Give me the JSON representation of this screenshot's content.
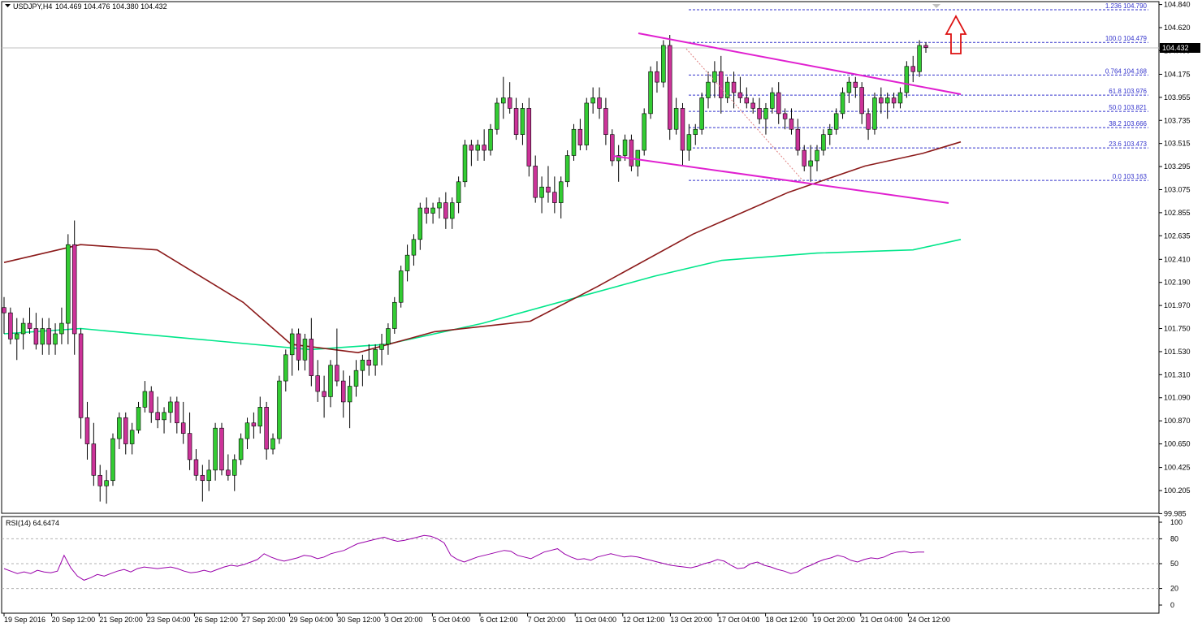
{
  "header": {
    "symbol": "USDJPY,H4",
    "ohlc": "104.469 104.476 104.380 104.432"
  },
  "price_axis": {
    "labels": [
      "104.840",
      "104.620",
      "104.400",
      "104.175",
      "103.955",
      "103.735",
      "103.515",
      "103.295",
      "103.075",
      "102.855",
      "102.635",
      "102.410",
      "102.190",
      "101.970",
      "101.750",
      "101.530",
      "101.310",
      "101.090",
      "100.870",
      "100.650",
      "100.425",
      "100.205",
      "99.985"
    ],
    "current_price": "104.432"
  },
  "rsi": {
    "label": "RSI(14) 64.6474",
    "levels": [
      "100",
      "80",
      "50",
      "20",
      "0"
    ]
  },
  "time_axis": {
    "labels": [
      "19 Sep 2016",
      "20 Sep 12:00",
      "21 Sep 20:00",
      "23 Sep 04:00",
      "26 Sep 12:00",
      "27 Sep 20:00",
      "29 Sep 04:00",
      "30 Sep 12:00",
      "3 Oct 20:00",
      "5 Oct 04:00",
      "6 Oct 12:00",
      "7 Oct 20:00",
      "11 Oct 04:00",
      "12 Oct 12:00",
      "13 Oct 20:00",
      "17 Oct 04:00",
      "18 Oct 12:00",
      "19 Oct 20:00",
      "21 Oct 04:00",
      "24 Oct 12:00"
    ]
  },
  "fibonacci": [
    {
      "ratio": "1.236",
      "price": "104.790"
    },
    {
      "ratio": "100.0",
      "price": "104.479"
    },
    {
      "ratio": "0.764",
      "price": "104.168"
    },
    {
      "ratio": "61.8",
      "price": "103.976"
    },
    {
      "ratio": "50.0",
      "price": "103.821"
    },
    {
      "ratio": "38.2",
      "price": "103.666"
    },
    {
      "ratio": "23.6",
      "price": "103.473"
    },
    {
      "ratio": "0.0",
      "price": "103.163"
    }
  ],
  "colors": {
    "bull": "#33cc33",
    "bear": "#cc3399",
    "ma_long": "#00e68a",
    "ma_short": "#8b1a1a",
    "channel": "#e020d0",
    "fib": "#3333cc",
    "arrow": "#dd1111",
    "rsi": "#9900aa"
  },
  "chart_data": {
    "type": "candlestick",
    "symbol": "USDJPY",
    "timeframe": "H4",
    "ylim": [
      99.985,
      104.84
    ],
    "candles": [
      [
        101.95,
        102.05,
        101.7,
        101.9
      ],
      [
        101.9,
        101.95,
        101.6,
        101.65
      ],
      [
        101.65,
        101.85,
        101.45,
        101.7
      ],
      [
        101.7,
        101.85,
        101.55,
        101.8
      ],
      [
        101.8,
        101.95,
        101.7,
        101.75
      ],
      [
        101.75,
        101.9,
        101.55,
        101.6
      ],
      [
        101.6,
        101.85,
        101.5,
        101.75
      ],
      [
        101.75,
        101.85,
        101.5,
        101.6
      ],
      [
        101.6,
        101.8,
        101.5,
        101.7
      ],
      [
        101.7,
        101.95,
        101.6,
        101.8
      ],
      [
        101.8,
        102.65,
        101.6,
        102.55
      ],
      [
        102.55,
        102.78,
        101.5,
        101.7
      ],
      [
        101.7,
        101.75,
        100.7,
        100.9
      ],
      [
        100.9,
        101.05,
        100.5,
        100.65
      ],
      [
        100.65,
        100.85,
        100.25,
        100.35
      ],
      [
        100.35,
        100.45,
        100.1,
        100.25
      ],
      [
        100.25,
        100.4,
        100.08,
        100.3
      ],
      [
        100.3,
        100.75,
        100.25,
        100.7
      ],
      [
        100.7,
        100.95,
        100.6,
        100.9
      ],
      [
        100.9,
        100.95,
        100.55,
        100.65
      ],
      [
        100.65,
        100.85,
        100.55,
        100.78
      ],
      [
        100.78,
        101.05,
        100.75,
        101.0
      ],
      [
        101.0,
        101.25,
        100.95,
        101.15
      ],
      [
        101.15,
        101.2,
        100.85,
        100.95
      ],
      [
        100.95,
        101.1,
        100.8,
        100.88
      ],
      [
        100.88,
        101.0,
        100.75,
        100.95
      ],
      [
        100.95,
        101.1,
        100.85,
        101.05
      ],
      [
        101.05,
        101.1,
        100.75,
        100.85
      ],
      [
        100.85,
        101.05,
        100.65,
        100.75
      ],
      [
        100.75,
        100.95,
        100.4,
        100.5
      ],
      [
        100.5,
        100.6,
        100.3,
        100.35
      ],
      [
        100.35,
        100.45,
        100.1,
        100.3
      ],
      [
        100.3,
        100.5,
        100.2,
        100.4
      ],
      [
        100.4,
        100.85,
        100.3,
        100.8
      ],
      [
        100.8,
        100.85,
        100.35,
        100.4
      ],
      [
        100.4,
        100.55,
        100.3,
        100.35
      ],
      [
        100.35,
        100.55,
        100.2,
        100.5
      ],
      [
        100.5,
        100.75,
        100.45,
        100.7
      ],
      [
        100.7,
        100.9,
        100.6,
        100.85
      ],
      [
        100.85,
        100.95,
        100.7,
        100.82
      ],
      [
        100.82,
        101.1,
        100.75,
        101.0
      ],
      [
        101.0,
        101.05,
        100.5,
        100.6
      ],
      [
        100.6,
        100.75,
        100.55,
        100.7
      ],
      [
        100.7,
        101.3,
        100.65,
        101.25
      ],
      [
        101.25,
        101.55,
        101.15,
        101.5
      ],
      [
        101.5,
        101.75,
        101.3,
        101.7
      ],
      [
        101.7,
        101.75,
        101.35,
        101.45
      ],
      [
        101.45,
        101.7,
        101.35,
        101.65
      ],
      [
        101.65,
        101.85,
        101.2,
        101.3
      ],
      [
        101.3,
        101.45,
        101.05,
        101.15
      ],
      [
        101.15,
        101.3,
        100.9,
        101.1
      ],
      [
        101.1,
        101.45,
        101.0,
        101.4
      ],
      [
        101.4,
        101.75,
        101.2,
        101.25
      ],
      [
        101.25,
        101.35,
        100.9,
        101.05
      ],
      [
        101.05,
        101.3,
        100.8,
        101.2
      ],
      [
        101.2,
        101.45,
        101.1,
        101.35
      ],
      [
        101.35,
        101.5,
        101.2,
        101.45
      ],
      [
        101.45,
        101.6,
        101.3,
        101.4
      ],
      [
        101.4,
        101.6,
        101.3,
        101.55
      ],
      [
        101.55,
        101.7,
        101.4,
        101.6
      ],
      [
        101.6,
        101.8,
        101.5,
        101.75
      ],
      [
        101.75,
        102.05,
        101.7,
        102.0
      ],
      [
        102.0,
        102.35,
        101.95,
        102.3
      ],
      [
        102.3,
        102.55,
        102.2,
        102.45
      ],
      [
        102.45,
        102.65,
        102.35,
        102.6
      ],
      [
        102.6,
        102.95,
        102.5,
        102.9
      ],
      [
        102.9,
        103.0,
        102.75,
        102.85
      ],
      [
        102.85,
        102.95,
        102.75,
        102.9
      ],
      [
        102.9,
        103.0,
        102.8,
        102.95
      ],
      [
        102.95,
        103.05,
        102.7,
        102.8
      ],
      [
        102.8,
        103.0,
        102.7,
        102.95
      ],
      [
        102.95,
        103.2,
        102.85,
        103.15
      ],
      [
        103.15,
        103.55,
        103.1,
        103.5
      ],
      [
        103.5,
        103.55,
        103.3,
        103.45
      ],
      [
        103.45,
        103.55,
        103.35,
        103.5
      ],
      [
        103.5,
        103.65,
        103.35,
        103.45
      ],
      [
        103.45,
        103.7,
        103.4,
        103.65
      ],
      [
        103.65,
        103.95,
        103.6,
        103.9
      ],
      [
        103.9,
        104.15,
        103.75,
        103.95
      ],
      [
        103.95,
        104.1,
        103.8,
        103.85
      ],
      [
        103.85,
        103.95,
        103.55,
        103.6
      ],
      [
        103.6,
        103.9,
        103.5,
        103.85
      ],
      [
        103.85,
        103.95,
        103.2,
        103.3
      ],
      [
        103.3,
        103.4,
        102.95,
        103.0
      ],
      [
        103.0,
        103.2,
        102.85,
        103.1
      ],
      [
        103.1,
        103.3,
        102.95,
        103.05
      ],
      [
        103.05,
        103.2,
        102.85,
        102.95
      ],
      [
        102.95,
        103.2,
        102.8,
        103.15
      ],
      [
        103.15,
        103.45,
        103.1,
        103.4
      ],
      [
        103.4,
        103.7,
        103.35,
        103.65
      ],
      [
        103.65,
        103.75,
        103.45,
        103.5
      ],
      [
        103.5,
        103.95,
        103.45,
        103.9
      ],
      [
        103.9,
        104.05,
        103.8,
        103.95
      ],
      [
        103.95,
        104.05,
        103.75,
        103.85
      ],
      [
        103.85,
        103.95,
        103.5,
        103.6
      ],
      [
        103.6,
        103.65,
        103.3,
        103.35
      ],
      [
        103.35,
        103.5,
        103.15,
        103.4
      ],
      [
        103.4,
        103.6,
        103.35,
        103.55
      ],
      [
        103.55,
        103.6,
        103.25,
        103.3
      ],
      [
        103.3,
        103.45,
        103.2,
        103.45
      ],
      [
        103.45,
        103.85,
        103.4,
        103.8
      ],
      [
        103.8,
        104.25,
        103.75,
        104.2
      ],
      [
        104.2,
        104.3,
        104.0,
        104.1
      ],
      [
        104.1,
        104.5,
        104.05,
        104.45
      ],
      [
        104.45,
        104.55,
        103.55,
        103.65
      ],
      [
        103.65,
        103.95,
        103.6,
        103.85
      ],
      [
        103.85,
        103.9,
        103.3,
        103.45
      ],
      [
        103.45,
        103.7,
        103.35,
        103.6
      ],
      [
        103.6,
        103.7,
        103.5,
        103.65
      ],
      [
        103.65,
        104.0,
        103.6,
        103.95
      ],
      [
        103.95,
        104.2,
        103.85,
        104.1
      ],
      [
        104.1,
        104.3,
        103.95,
        104.2
      ],
      [
        104.2,
        104.35,
        103.8,
        103.95
      ],
      [
        103.95,
        104.15,
        103.9,
        104.1
      ],
      [
        104.1,
        104.2,
        103.85,
        104.0
      ],
      [
        104.0,
        104.15,
        103.9,
        103.95
      ],
      [
        103.95,
        104.05,
        103.85,
        103.9
      ],
      [
        103.9,
        103.95,
        103.8,
        103.85
      ],
      [
        103.85,
        103.95,
        103.7,
        103.75
      ],
      [
        103.75,
        103.9,
        103.6,
        103.85
      ],
      [
        103.85,
        104.05,
        103.8,
        104.0
      ],
      [
        104.0,
        104.1,
        103.7,
        103.8
      ],
      [
        103.8,
        103.85,
        103.65,
        103.75
      ],
      [
        103.75,
        103.85,
        103.6,
        103.65
      ],
      [
        103.65,
        103.75,
        103.4,
        103.45
      ],
      [
        103.45,
        103.5,
        103.25,
        103.3
      ],
      [
        103.3,
        103.5,
        103.15,
        103.35
      ],
      [
        103.35,
        103.5,
        103.25,
        103.45
      ],
      [
        103.45,
        103.65,
        103.4,
        103.6
      ],
      [
        103.6,
        103.7,
        103.5,
        103.65
      ],
      [
        103.65,
        103.85,
        103.6,
        103.8
      ],
      [
        103.8,
        104.05,
        103.75,
        104.0
      ],
      [
        104.0,
        104.15,
        103.9,
        104.1
      ],
      [
        104.1,
        104.15,
        103.95,
        104.05
      ],
      [
        104.05,
        104.1,
        103.7,
        103.8
      ],
      [
        103.8,
        103.85,
        103.55,
        103.65
      ],
      [
        103.65,
        104.0,
        103.6,
        103.95
      ],
      [
        103.95,
        104.05,
        103.8,
        103.9
      ],
      [
        103.9,
        104.0,
        103.75,
        103.95
      ],
      [
        103.95,
        104.0,
        103.85,
        103.9
      ],
      [
        103.9,
        104.05,
        103.85,
        104.0
      ],
      [
        104.0,
        104.3,
        103.95,
        104.25
      ],
      [
        104.25,
        104.35,
        104.1,
        104.2
      ],
      [
        104.2,
        104.5,
        104.15,
        104.45
      ],
      [
        104.45,
        104.48,
        104.38,
        104.43
      ]
    ],
    "ma_long": [
      [
        0,
        101.7
      ],
      [
        0.08,
        101.75
      ],
      [
        0.2,
        101.65
      ],
      [
        0.32,
        101.55
      ],
      [
        0.4,
        101.6
      ],
      [
        0.5,
        101.8
      ],
      [
        0.6,
        102.05
      ],
      [
        0.68,
        102.25
      ],
      [
        0.75,
        102.4
      ],
      [
        0.85,
        102.47
      ],
      [
        0.95,
        102.5
      ],
      [
        1,
        102.6
      ]
    ],
    "ma_short": [
      [
        0,
        102.38
      ],
      [
        0.08,
        102.55
      ],
      [
        0.16,
        102.5
      ],
      [
        0.25,
        102.0
      ],
      [
        0.3,
        101.6
      ],
      [
        0.37,
        101.52
      ],
      [
        0.45,
        101.72
      ],
      [
        0.55,
        101.82
      ],
      [
        0.62,
        102.15
      ],
      [
        0.72,
        102.65
      ],
      [
        0.82,
        103.05
      ],
      [
        0.9,
        103.3
      ],
      [
        0.96,
        103.42
      ],
      [
        1,
        103.53
      ]
    ],
    "rsi": {
      "name": "RSI(14)",
      "ylim": [
        0,
        100
      ],
      "values": [
        44,
        41,
        38,
        40,
        38,
        42,
        40,
        39,
        41,
        60,
        45,
        35,
        30,
        33,
        37,
        35,
        38,
        41,
        43,
        40,
        44,
        46,
        45,
        44,
        45,
        46,
        44,
        41,
        39,
        40,
        42,
        40,
        43,
        46,
        48,
        47,
        49,
        52,
        55,
        62,
        58,
        55,
        53,
        55,
        57,
        60,
        59,
        56,
        58,
        62,
        64,
        66,
        70,
        74,
        76,
        78,
        80,
        82,
        79,
        77,
        78,
        80,
        82,
        84,
        83,
        80,
        75,
        60,
        55,
        52,
        55,
        58,
        60,
        62,
        64,
        66,
        65,
        60,
        58,
        56,
        60,
        64,
        66,
        68,
        62,
        58,
        55,
        56,
        54,
        58,
        60,
        62,
        60,
        58,
        59,
        58,
        56,
        54,
        52,
        50,
        48,
        47,
        46,
        45,
        47,
        50,
        52,
        55,
        53,
        48,
        44,
        45,
        50,
        52,
        48,
        46,
        43,
        41,
        38,
        40,
        45,
        48,
        52,
        55,
        57,
        60,
        58,
        54,
        52,
        55,
        57,
        56,
        58,
        62,
        64,
        65,
        63,
        64,
        64
      ]
    },
    "fib_levels": [
      1.236,
      1.0,
      0.764,
      0.618,
      0.5,
      0.382,
      0.236,
      0.0
    ]
  }
}
